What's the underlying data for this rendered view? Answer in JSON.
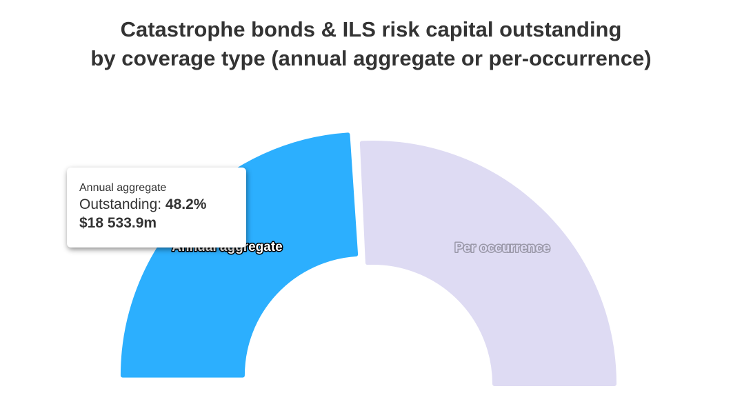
{
  "chart_data": {
    "type": "pie",
    "variant": "semi-circle donut",
    "title": "Catastrophe bonds & ILS risk capital outstanding by coverage type (annual aggregate or per-occurrence)",
    "title_lines": [
      "Catastrophe bonds & ILS risk capital outstanding",
      "by coverage type (annual aggregate or per-occurrence)"
    ],
    "unit": "%",
    "slices": [
      {
        "name": "Annual aggregate",
        "value": 48.2,
        "color": "#2caffe",
        "label_color": "#ffffff",
        "selected": true
      },
      {
        "name": "Per occurrence",
        "value": 51.8,
        "color": "#dedbf3",
        "label_color": "#dedbf3"
      }
    ],
    "tooltip": {
      "series_name": "Annual aggregate",
      "metric_label": "Outstanding: ",
      "percent": "48.2%",
      "amount": "$18 533.9m"
    }
  }
}
